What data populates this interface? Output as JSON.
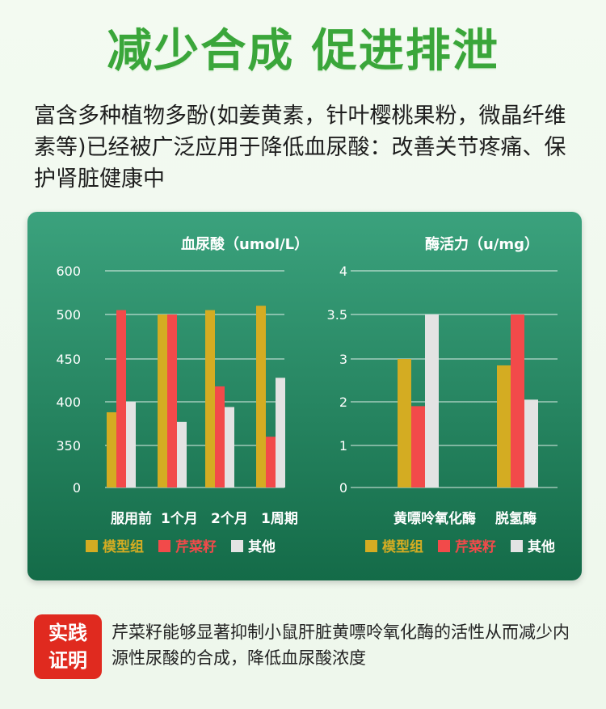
{
  "header": {
    "title": "减少合成 促进排泄"
  },
  "intro": {
    "text": "富含多种植物多酚(如姜黄素，针叶樱桃果粉，微晶纤维素等)已经被广泛应用于降低血尿酸：改善关节疼痛、保护肾脏健康中"
  },
  "colors": {
    "model": "#d4ac22",
    "celery": "#f24a4a",
    "other": "#e3e3e3",
    "text": "#ffffff",
    "grid": "#ffffff"
  },
  "chart_data": [
    {
      "type": "bar",
      "title": "血尿酸（umol/L）",
      "categories": [
        "服用前",
        "1个月",
        "2个月",
        "1周期"
      ],
      "yticks": [
        "0",
        "350",
        "400",
        "450",
        "500",
        "600"
      ],
      "series": [
        {
          "name": "模型组",
          "values": [
            388,
            500,
            510,
            520
          ]
        },
        {
          "name": "芹菜籽",
          "values": [
            510,
            500,
            418,
            360
          ]
        },
        {
          "name": "其他",
          "values": [
            400,
            377,
            394,
            428
          ]
        }
      ],
      "legend": [
        "模型组",
        "芹菜籽",
        "其他"
      ],
      "legend_position": "bottom"
    },
    {
      "type": "bar",
      "title": "酶活力（u/mg）",
      "categories": [
        "黄嘌呤氧化酶",
        "脱氢酶"
      ],
      "yticks": [
        "0",
        "1",
        "2",
        "3",
        "3.5",
        "4"
      ],
      "series": [
        {
          "name": "模型组",
          "values": [
            3.0,
            2.85
          ]
        },
        {
          "name": "芹菜籽",
          "values": [
            1.9,
            3.5
          ]
        },
        {
          "name": "其他",
          "values": [
            3.5,
            2.05
          ]
        }
      ],
      "legend": [
        "模型组",
        "芹菜籽",
        "其他"
      ],
      "legend_position": "bottom"
    }
  ],
  "footer": {
    "badge_line1": "实践",
    "badge_line2": "证明",
    "text": "芹菜籽能够显著抑制小鼠肝脏黄嘌呤氧化酶的活性从而减少内源性尿酸的合成，降低血尿酸浓度"
  }
}
